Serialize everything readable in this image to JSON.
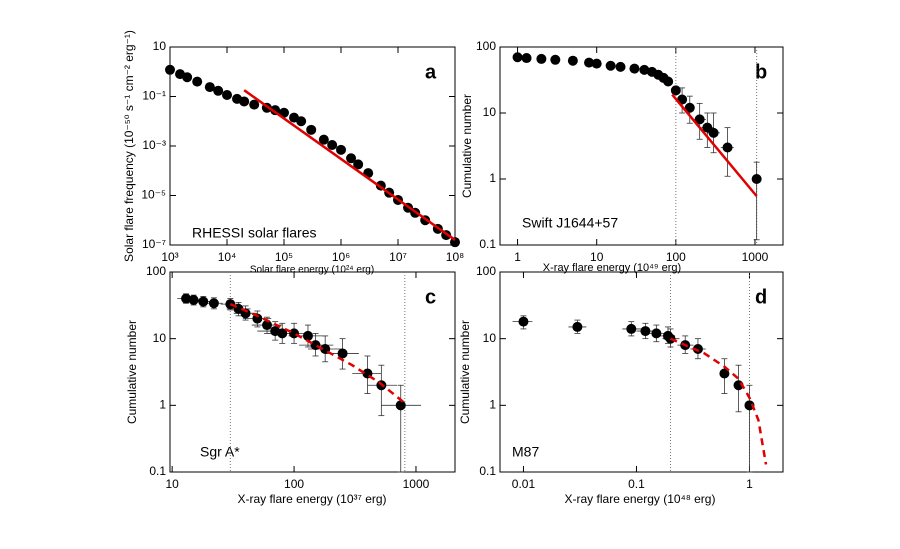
{
  "chart_data": [
    {
      "type": "scatter",
      "panel": "a",
      "annotation": "RHESSI solar flares",
      "x_label": "Solar flare energy (10²⁴ erg)",
      "y_label": "Solar flare frequency (10⁻⁵⁰ s⁻¹ cm⁻² erg⁻¹)",
      "xscale": "log",
      "yscale": "log",
      "xlim": [
        1000,
        100000000
      ],
      "ylim": [
        1e-07,
        10
      ],
      "xticks": [
        {
          "value": 1000,
          "label": "10³"
        },
        {
          "value": 10000,
          "label": "10⁴"
        },
        {
          "value": 100000,
          "label": "10⁵"
        },
        {
          "value": 1000000,
          "label": "10⁶"
        },
        {
          "value": 10000000,
          "label": "10⁷"
        },
        {
          "value": 100000000,
          "label": "10⁸"
        }
      ],
      "yticks": [
        10,
        {
          "value": 0.1,
          "label": "10⁻¹"
        },
        {
          "value": 0.001,
          "label": "10⁻³"
        },
        {
          "value": 1e-05,
          "label": "10⁻⁵"
        },
        {
          "value": 1e-07,
          "label": "10⁻⁷"
        }
      ],
      "color": "#000000",
      "x": [
        1000,
        1500,
        2000,
        3000,
        5000,
        7000,
        10000,
        15000,
        20000,
        30000,
        50000,
        70000,
        100000,
        150000,
        200000,
        300000,
        500000,
        700000,
        1000000,
        1500000,
        2000000,
        3000000,
        5000000,
        7000000,
        10000000,
        15000000,
        20000000,
        30000000,
        50000000,
        70000000,
        100000000
      ],
      "values": [
        1.2,
        0.8,
        0.6,
        0.4,
        0.24,
        0.17,
        0.115,
        0.08,
        0.063,
        0.047,
        0.035,
        0.028,
        0.022,
        0.014,
        0.01,
        0.0045,
        0.0018,
        0.0011,
        0.0007,
        0.00032,
        0.00018,
        8e-05,
        2.5e-05,
        1.3e-05,
        6.6e-06,
        3.2e-06,
        2e-06,
        1e-06,
        4.5e-07,
        2.5e-07,
        1.3e-07
      ],
      "fit": {
        "x": [
          20000,
          100000000
        ],
        "values": [
          0.18,
          1.6e-07
        ],
        "color": "#e00000",
        "dashed": false
      }
    },
    {
      "type": "scatter",
      "panel": "b",
      "annotation": "Swift J1644+57",
      "x_label": "X-ray flare energy (10⁴⁹ erg)",
      "y_label": "Cumulative number",
      "xscale": "log",
      "yscale": "log",
      "xlim": [
        0.6,
        2260
      ],
      "ylim": [
        0.1,
        100
      ],
      "xticks": [
        1,
        10,
        100,
        1000
      ],
      "yticks": [
        0.1,
        1,
        10,
        100
      ],
      "color": "#000000",
      "x": [
        1,
        1.3,
        2,
        3,
        5,
        8,
        10,
        15,
        20,
        30,
        40,
        50,
        60,
        70,
        80,
        100,
        120,
        150,
        200,
        250,
        300,
        450,
        1050
      ],
      "values": [
        70,
        68,
        66,
        64,
        62,
        58,
        56,
        52,
        50,
        47,
        45,
        42,
        38,
        34,
        30,
        22,
        16,
        12,
        8,
        6,
        5,
        3,
        1
      ],
      "ylow": [
        null,
        null,
        null,
        null,
        null,
        null,
        null,
        null,
        null,
        null,
        null,
        null,
        null,
        null,
        null,
        null,
        10,
        7,
        4,
        3,
        2.5,
        1.1,
        0.12
      ],
      "yhigh": [
        null,
        null,
        null,
        null,
        null,
        null,
        null,
        null,
        null,
        null,
        null,
        null,
        null,
        null,
        null,
        null,
        24,
        18,
        14,
        10,
        10,
        6,
        1.8
      ],
      "xlow": [
        null,
        null,
        null,
        null,
        null,
        null,
        null,
        null,
        null,
        null,
        null,
        null,
        null,
        null,
        null,
        null,
        null,
        null,
        170,
        210,
        250,
        370,
        null
      ],
      "xhigh": [
        null,
        null,
        null,
        null,
        null,
        null,
        null,
        null,
        null,
        null,
        null,
        null,
        null,
        null,
        null,
        null,
        null,
        null,
        240,
        300,
        360,
        540,
        null
      ],
      "vlines": [
        100,
        1050
      ],
      "fit": {
        "x": [
          90,
          1050
        ],
        "values": [
          19,
          0.55
        ],
        "color": "#e00000",
        "dashed": false
      }
    },
    {
      "type": "scatter",
      "panel": "c",
      "annotation": "Sgr A*",
      "x_label": "X-ray flare energy (10³⁷ erg)",
      "y_label": "Cumulative number",
      "xscale": "log",
      "yscale": "log",
      "xlim": [
        9.6,
        2090
      ],
      "ylim": [
        0.1,
        100
      ],
      "xticks": [
        10,
        100,
        1000
      ],
      "yticks": [
        0.1,
        1,
        10,
        100
      ],
      "color": "#000000",
      "x": [
        13,
        15,
        18,
        22,
        30,
        35,
        40,
        50,
        60,
        70,
        80,
        100,
        130,
        150,
        180,
        250,
        400,
        520,
        750
      ],
      "values": [
        40,
        38,
        36,
        34,
        33,
        28,
        24,
        20,
        16,
        13,
        12,
        12,
        11,
        8,
        7,
        6,
        3,
        2,
        1
      ],
      "ylow": [
        34,
        32,
        30,
        28,
        27,
        22,
        19,
        15,
        12,
        9.5,
        8.5,
        8.5,
        7.5,
        5.5,
        4.5,
        3.5,
        1.5,
        0.7,
        0.1
      ],
      "yhigh": [
        47,
        45,
        43,
        41,
        40,
        35,
        31,
        26,
        21,
        18,
        17,
        17,
        16,
        12,
        11,
        10,
        5.5,
        4,
        2
      ],
      "xlow": [
        11,
        13,
        15,
        18,
        25,
        28,
        32,
        38,
        45,
        50,
        60,
        70,
        90,
        110,
        130,
        180,
        300,
        400,
        520
      ],
      "xhigh": [
        15,
        17,
        21,
        26,
        36,
        44,
        50,
        65,
        80,
        95,
        110,
        140,
        180,
        210,
        250,
        340,
        520,
        700,
        1100
      ],
      "vlines": [
        30,
        810
      ],
      "fit": {
        "x": [
          30,
          50,
          100,
          200,
          300,
          500,
          800
        ],
        "values": [
          33,
          22,
          12,
          6,
          4,
          2.2,
          1.1
        ],
        "color": "#e00000",
        "dashed": true
      }
    },
    {
      "type": "scatter",
      "panel": "d",
      "annotation": "M87",
      "x_label": "X-ray flare energy (10⁴⁸ erg)",
      "y_label": "Cumulative number",
      "xscale": "log",
      "yscale": "log",
      "xlim": [
        0.0062,
        1.98
      ],
      "ylim": [
        0.1,
        100
      ],
      "xticks": [
        0.01,
        0.1,
        1
      ],
      "yticks": [
        0.1,
        1,
        10,
        100
      ],
      "color": "#000000",
      "x": [
        0.01,
        0.03,
        0.09,
        0.12,
        0.15,
        0.19,
        0.2,
        0.27,
        0.35,
        0.6,
        0.8,
        1.0
      ],
      "values": [
        18,
        15,
        14,
        13,
        12,
        11,
        10,
        8,
        7,
        3,
        2,
        1
      ],
      "ylow": [
        14,
        12,
        11,
        10,
        9,
        8.5,
        7.5,
        6,
        5,
        1.5,
        0.8,
        0.1
      ],
      "yhigh": [
        22,
        19,
        18,
        17,
        16,
        15,
        14,
        11,
        10,
        5,
        4,
        2
      ],
      "xlow": [
        0.008,
        0.025,
        0.075,
        0.1,
        0.13,
        0.16,
        0.17,
        0.23,
        0.3,
        null,
        null,
        null
      ],
      "xhigh": [
        0.012,
        0.036,
        0.11,
        0.14,
        0.18,
        0.22,
        0.24,
        0.32,
        0.41,
        null,
        null,
        null
      ],
      "vlines": [
        0.2,
        1.0
      ],
      "fit": {
        "x": [
          0.2,
          0.4,
          0.6,
          0.8,
          1.0,
          1.2,
          1.4
        ],
        "values": [
          10,
          6,
          3.8,
          2.5,
          1.3,
          0.6,
          0.13
        ],
        "color": "#e00000",
        "dashed": true
      }
    }
  ]
}
